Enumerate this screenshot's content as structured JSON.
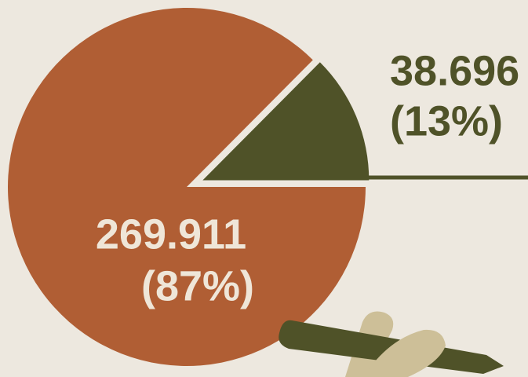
{
  "chart_data": {
    "type": "pie",
    "values": [
      269.911,
      38.696
    ],
    "colors": [
      "#b05e34",
      "#4f5228"
    ],
    "shares": [
      87,
      13
    ],
    "share_labels": [
      "(87%)",
      "(13%)"
    ]
  }
}
